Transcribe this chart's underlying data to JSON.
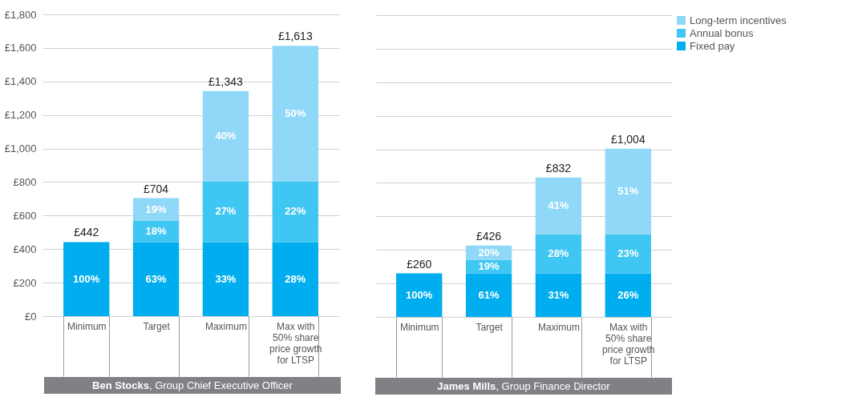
{
  "chart_data": [
    {
      "type": "bar",
      "stacked": true,
      "xlabel": "Ben Stocks, Group Chief Executive Officer",
      "categories": [
        "Minimum",
        "Target",
        "Maximum",
        "Max with 50% share price growth for LTSP"
      ],
      "series": [
        {
          "color": "#00aeef",
          "values": [
            442,
            442,
            442,
            442
          ]
        },
        {
          "color": "#40c6f2",
          "values": [
            null,
            128,
            363,
            363
          ]
        },
        {
          "color": "#8fd8f7",
          "values": [
            null,
            134,
            538,
            808
          ]
        }
      ],
      "totals": [
        "£442",
        "£704",
        "£1,343",
        "£1,613"
      ],
      "annotations": [
        "100%",
        "63%",
        "18%",
        "19%",
        "33%",
        "27%",
        "40%",
        "28%",
        "22%",
        "50%"
      ],
      "ylim": [
        0,
        1800
      ],
      "yticks": [
        {
          "value": 0,
          "label": "£0"
        },
        {
          "value": 200,
          "label": "£200"
        },
        {
          "value": 400,
          "label": "£400"
        },
        {
          "value": 600,
          "label": "£600"
        },
        {
          "value": 800,
          "label": "£800"
        },
        {
          "value": 1000,
          "label": "£1,000"
        },
        {
          "value": 1200,
          "label": "£1,200"
        },
        {
          "value": 1400,
          "label": "£1,400"
        },
        {
          "value": 1600,
          "label": "£1,600"
        },
        {
          "value": 1800,
          "label": "£1,800"
        }
      ],
      "grid": "y"
    },
    {
      "type": "bar",
      "stacked": true,
      "xlabel": "James Mills, Group Finance Director",
      "categories": [
        "Minimum",
        "Target",
        "Maximum",
        "Max with 50% share price growth for LTSP"
      ],
      "series": [
        {
          "name": "Fixed pay",
          "color": "#00aeef",
          "values": [
            260,
            260,
            260,
            260
          ]
        },
        {
          "name": "Annual bonus",
          "color": "#40c6f2",
          "values": [
            null,
            81,
            233,
            233
          ]
        },
        {
          "name": "Long-term incentives",
          "color": "#8fd8f7",
          "values": [
            null,
            85,
            339,
            511
          ]
        }
      ],
      "totals": [
        "£260",
        "£426",
        "£832",
        "£1,004"
      ],
      "annotations": [
        "100%",
        "61%",
        "19%",
        "20%",
        "31%",
        "28%",
        "41%",
        "26%",
        "23%",
        "51%"
      ],
      "ylim": [
        0,
        1800
      ],
      "yticks": [
        0,
        200,
        400,
        600,
        800,
        1000,
        1200,
        1400,
        1600,
        1800
      ],
      "grid": "y",
      "legend": "top right",
      "tick_labels": "x"
    }
  ]
}
